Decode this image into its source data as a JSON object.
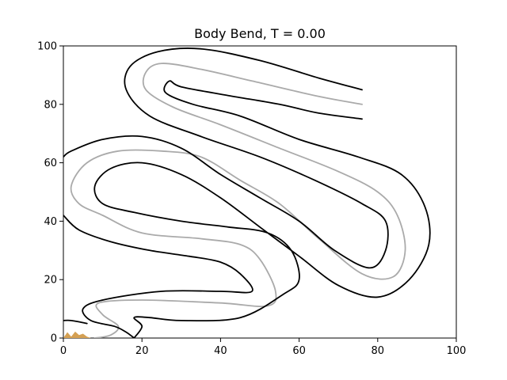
{
  "chart_data": {
    "type": "line",
    "title": "Body Bend, T = 0.00",
    "xlabel": "",
    "ylabel": "",
    "xlim": [
      0,
      100
    ],
    "ylim": [
      0,
      100
    ],
    "x_ticks": [
      "0",
      "20",
      "40",
      "60",
      "80",
      "100"
    ],
    "y_ticks": [
      "0",
      "20",
      "40",
      "60",
      "80",
      "100"
    ],
    "grid": false,
    "series": [
      {
        "role": "centerline",
        "color": "#aaaaaa",
        "points": [
          [
            76,
            80
          ],
          [
            64,
            83
          ],
          [
            48,
            88
          ],
          [
            35,
            92
          ],
          [
            25,
            94
          ],
          [
            21,
            91
          ],
          [
            21,
            85
          ],
          [
            28,
            79
          ],
          [
            40,
            73
          ],
          [
            55,
            65
          ],
          [
            70,
            57
          ],
          [
            80,
            50
          ],
          [
            85,
            42
          ],
          [
            87,
            30
          ],
          [
            84,
            21
          ],
          [
            76,
            22
          ],
          [
            65,
            34
          ],
          [
            55,
            46
          ],
          [
            45,
            54
          ],
          [
            35,
            62
          ],
          [
            25,
            64
          ],
          [
            14,
            64
          ],
          [
            6,
            60
          ],
          [
            2,
            52
          ],
          [
            4,
            46
          ],
          [
            10,
            42
          ],
          [
            20,
            36
          ],
          [
            35,
            34
          ],
          [
            45,
            32
          ],
          [
            50,
            27
          ],
          [
            54,
            16
          ],
          [
            52,
            11
          ],
          [
            40,
            12
          ],
          [
            20,
            13
          ],
          [
            9,
            12
          ],
          [
            10,
            8
          ],
          [
            14,
            4
          ],
          [
            12,
            1
          ],
          [
            8,
            0
          ]
        ]
      },
      {
        "role": "outer-edge",
        "color": "#000000",
        "points": [
          [
            76,
            85
          ],
          [
            65,
            89
          ],
          [
            50,
            95
          ],
          [
            35,
            99
          ],
          [
            24,
            98
          ],
          [
            17,
            93
          ],
          [
            16,
            85
          ],
          [
            22,
            76
          ],
          [
            35,
            69
          ],
          [
            50,
            62
          ],
          [
            64,
            54
          ],
          [
            76,
            46
          ],
          [
            82,
            40
          ],
          [
            82,
            30
          ],
          [
            78,
            24
          ],
          [
            69,
            30
          ],
          [
            60,
            40
          ],
          [
            50,
            48
          ],
          [
            40,
            56
          ],
          [
            30,
            65
          ],
          [
            20,
            69
          ],
          [
            10,
            68
          ],
          [
            2,
            64
          ],
          [
            0,
            62
          ]
        ]
      },
      {
        "role": "outer-edge",
        "color": "#000000",
        "points": [
          [
            0,
            42
          ],
          [
            4,
            37
          ],
          [
            12,
            33
          ],
          [
            22,
            30
          ],
          [
            32,
            28
          ],
          [
            40,
            26
          ],
          [
            45,
            22
          ],
          [
            48,
            16
          ],
          [
            40,
            16
          ],
          [
            25,
            16
          ],
          [
            10,
            13
          ],
          [
            5,
            10
          ],
          [
            7,
            6
          ],
          [
            13,
            4
          ],
          [
            16,
            2
          ],
          [
            18,
            0
          ]
        ]
      },
      {
        "role": "inner-edge",
        "color": "#000000",
        "points": [
          [
            76,
            75
          ],
          [
            65,
            77
          ],
          [
            55,
            80
          ],
          [
            42,
            83
          ],
          [
            30,
            86
          ],
          [
            27,
            88
          ],
          [
            26,
            84
          ],
          [
            33,
            80
          ],
          [
            45,
            76
          ],
          [
            60,
            68
          ],
          [
            75,
            62
          ],
          [
            86,
            56
          ],
          [
            92,
            45
          ],
          [
            93,
            32
          ],
          [
            88,
            20
          ],
          [
            80,
            14
          ],
          [
            70,
            18
          ],
          [
            60,
            28
          ],
          [
            50,
            38
          ],
          [
            40,
            48
          ],
          [
            30,
            56
          ],
          [
            20,
            60
          ],
          [
            12,
            58
          ],
          [
            8,
            52
          ],
          [
            10,
            46
          ],
          [
            18,
            43
          ],
          [
            30,
            40
          ],
          [
            42,
            38
          ],
          [
            52,
            36
          ],
          [
            58,
            30
          ],
          [
            60,
            20
          ],
          [
            56,
            15
          ],
          [
            45,
            7
          ],
          [
            30,
            6
          ],
          [
            22,
            7
          ],
          [
            18,
            7
          ],
          [
            20,
            4
          ],
          [
            18,
            0
          ]
        ]
      },
      {
        "role": "inner-edge",
        "color": "#000000",
        "points": [
          [
            0,
            6
          ],
          [
            2,
            6
          ],
          [
            6,
            5
          ]
        ]
      }
    ],
    "annotations": [
      {
        "type": "filled-shape",
        "color": "#d4a053",
        "points": [
          [
            0,
            0
          ],
          [
            1,
            2
          ],
          [
            2,
            0.5
          ],
          [
            3,
            2.2
          ],
          [
            4,
            1
          ],
          [
            5,
            1.5
          ],
          [
            6,
            0.5
          ],
          [
            7,
            0
          ]
        ]
      }
    ]
  }
}
